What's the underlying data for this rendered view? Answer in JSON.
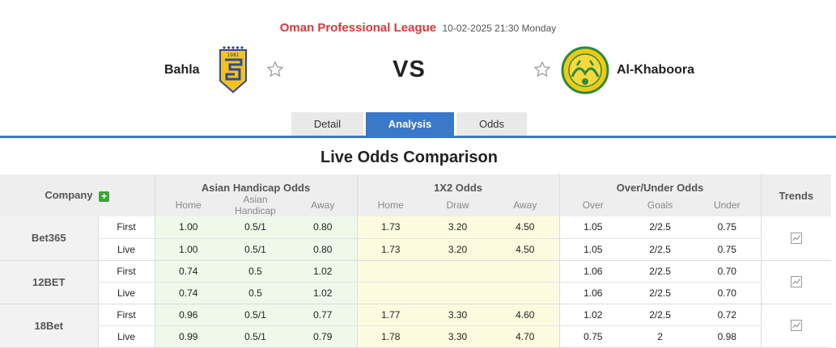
{
  "match": {
    "league": "Oman Professional League",
    "datetime": "10-02-2025 21:30 Monday",
    "home_team": "Bahla",
    "away_team": "Al-Khaboora",
    "vs": "VS",
    "home_logo_text": "1981"
  },
  "tabs": [
    {
      "label": "Detail"
    },
    {
      "label": "Analysis",
      "active": true
    },
    {
      "label": "Odds"
    }
  ],
  "section_title": "Live Odds Comparison",
  "table": {
    "company_header": "Company",
    "trends_header": "Trends",
    "groups": [
      "Asian Handicap Odds",
      "1X2 Odds",
      "Over/Under Odds"
    ],
    "sub_headers": {
      "asian_handicap": [
        "Home",
        "Asian Handicap",
        "Away"
      ],
      "x12": [
        "Home",
        "Draw",
        "Away"
      ],
      "over_under": [
        "Over",
        "Goals",
        "Under"
      ]
    },
    "rows": [
      {
        "company": "Bet365",
        "first": {
          "type": "First",
          "ah": [
            "1.00",
            "0.5/1",
            "0.80"
          ],
          "x12": [
            "1.73",
            "3.20",
            "4.50"
          ],
          "ou": [
            "1.05",
            "2/2.5",
            "0.75"
          ]
        },
        "live": {
          "type": "Live",
          "ah": [
            "1.00",
            "0.5/1",
            "0.80"
          ],
          "x12": [
            "1.73",
            "3.20",
            "4.50"
          ],
          "ou": [
            "1.05",
            "2/2.5",
            "0.75"
          ]
        }
      },
      {
        "company": "12BET",
        "first": {
          "type": "First",
          "ah": [
            "0.74",
            "0.5",
            "1.02"
          ],
          "x12": [
            "",
            "",
            ""
          ],
          "ou": [
            "1.06",
            "2/2.5",
            "0.70"
          ]
        },
        "live": {
          "type": "Live",
          "ah": [
            "0.74",
            "0.5",
            "1.02"
          ],
          "x12": [
            "",
            "",
            ""
          ],
          "ou": [
            "1.06",
            "2/2.5",
            "0.70"
          ]
        }
      },
      {
        "company": "18Bet",
        "first": {
          "type": "First",
          "ah": [
            "0.96",
            "0.5/1",
            "0.77"
          ],
          "x12": [
            "1.77",
            "3.30",
            "4.60"
          ],
          "ou": [
            "1.02",
            "2/2.5",
            "0.72"
          ]
        },
        "live": {
          "type": "Live",
          "ah": [
            "0.99",
            "0.5/1",
            "0.79"
          ],
          "x12": [
            "1.78",
            "3.30",
            "4.70"
          ],
          "ou": [
            "0.75",
            "2",
            "0.98"
          ]
        }
      }
    ]
  },
  "icons": {
    "favorite": "star-outline-icon",
    "add": "plus-icon",
    "trend": "line-chart-icon"
  },
  "colors": {
    "league": "#d9383a",
    "active_tab": "#3a78c9",
    "plus": "#3aa53a",
    "asian_handicap_bg": "#eef9ea",
    "x12_bg": "#fdfbdf"
  }
}
